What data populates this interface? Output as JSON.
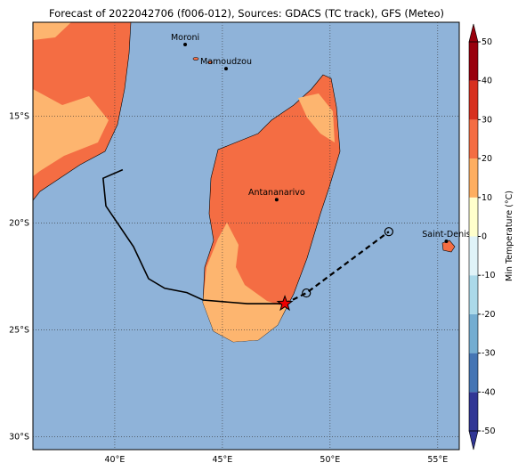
{
  "title": "Forecast of 2022042706 (f006-012), Sources: GDACS (TC track), GFS (Meteo)",
  "map": {
    "xlim": [
      36.2,
      56.0
    ],
    "ylim": [
      -30.6,
      -10.6
    ],
    "xticks": [
      {
        "value": 40,
        "label": "40°E"
      },
      {
        "value": 45,
        "label": "45°E"
      },
      {
        "value": 50,
        "label": "50°E"
      },
      {
        "value": 55,
        "label": "55°E"
      }
    ],
    "yticks": [
      {
        "value": -15,
        "label": "15°S"
      },
      {
        "value": -20,
        "label": "20°S"
      },
      {
        "value": -25,
        "label": "25°S"
      },
      {
        "value": -30,
        "label": "30°S"
      }
    ]
  },
  "cities": [
    {
      "name": "Moroni",
      "lon": 43.27,
      "lat": -11.64
    },
    {
      "name": "Mamoudzou",
      "lon": 45.17,
      "lat": -12.77
    },
    {
      "name": "Antananarivo",
      "lon": 47.52,
      "lat": -18.9
    },
    {
      "name": "Saint-Denis",
      "lon": 55.4,
      "lat": -20.85
    }
  ],
  "track": {
    "past": {
      "lon": [
        40.37,
        39.46,
        39.59,
        40.87,
        41.57,
        42.32,
        43.35,
        44.1,
        46.16,
        47.9
      ],
      "lat": [
        -17.5,
        -17.9,
        -19.2,
        -21.1,
        -22.6,
        -23.05,
        -23.25,
        -23.6,
        -23.77,
        -23.77
      ]
    },
    "forecast": {
      "lon": [
        47.9,
        48.9,
        52.73
      ],
      "lat": [
        -23.77,
        -23.27,
        -20.4
      ]
    }
  },
  "colorbar": {
    "label": "Min Temperature (°C)",
    "lim": [
      -50,
      50
    ],
    "ticks": [
      50,
      40,
      30,
      20,
      10,
      0,
      -10,
      -20,
      -30,
      -40,
      -50
    ],
    "colors": [
      "#313695",
      "#4575b4",
      "#74add1",
      "#abd9e9",
      "#e0f3f8",
      "#ffffcc",
      "#fdae61",
      "#f46d43",
      "#d7301f",
      "#99000d"
    ]
  }
}
